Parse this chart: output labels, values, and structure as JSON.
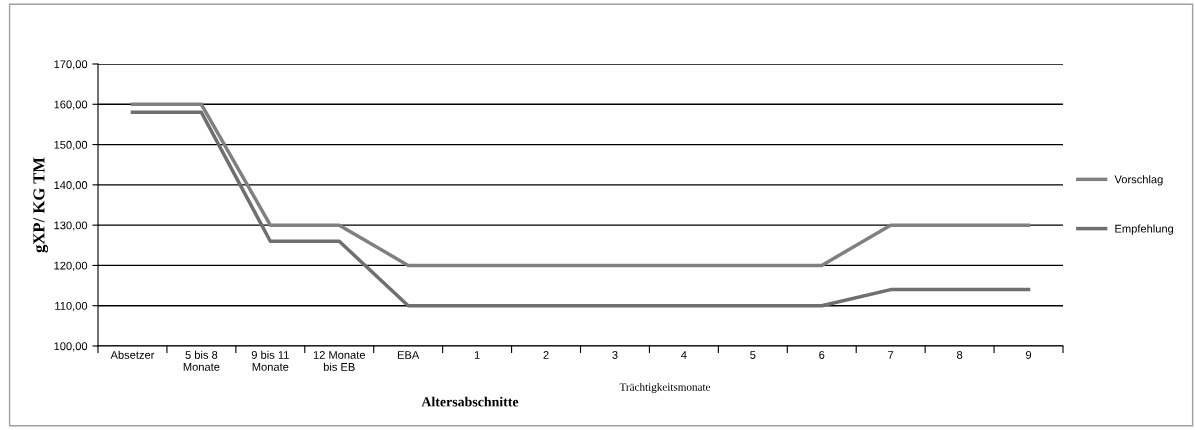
{
  "chart_data": {
    "type": "line",
    "xlabel": "Altersabschnitte",
    "ylabel": "gXP/ KG TM",
    "categories": [
      "Absetzer",
      "5 bis 8\nMonate",
      "9 bis 11\nMonate",
      "12 Monate\nbis EB",
      "EBA",
      "1",
      "2",
      "3",
      "4",
      "5",
      "6",
      "7",
      "8",
      "9"
    ],
    "series": [
      {
        "name": "Vorschlag",
        "color": "#808080",
        "values": [
          160,
          160,
          130,
          130,
          120,
          120,
          120,
          120,
          120,
          120,
          120,
          130,
          130,
          130
        ]
      },
      {
        "name": "Empfehlung",
        "color": "#6f6f6f",
        "values": [
          158,
          158,
          126,
          126,
          110,
          110,
          110,
          110,
          110,
          110,
          110,
          114,
          114,
          114
        ]
      }
    ],
    "ylim": [
      100,
      170
    ],
    "yticks": [
      {
        "value": 100,
        "label": "100,00"
      },
      {
        "value": 110,
        "label": "110,00"
      },
      {
        "value": 120,
        "label": "120,00"
      },
      {
        "value": 130,
        "label": "130,00"
      },
      {
        "value": 140,
        "label": "140,00"
      },
      {
        "value": 150,
        "label": "150,00"
      },
      {
        "value": 160,
        "label": "160,00"
      },
      {
        "value": 170,
        "label": "170,00"
      }
    ],
    "grid": "y",
    "legend": "right",
    "marker": "none",
    "line_style": "solid",
    "annotations": [
      "Trächtigkeitsmonate"
    ]
  }
}
